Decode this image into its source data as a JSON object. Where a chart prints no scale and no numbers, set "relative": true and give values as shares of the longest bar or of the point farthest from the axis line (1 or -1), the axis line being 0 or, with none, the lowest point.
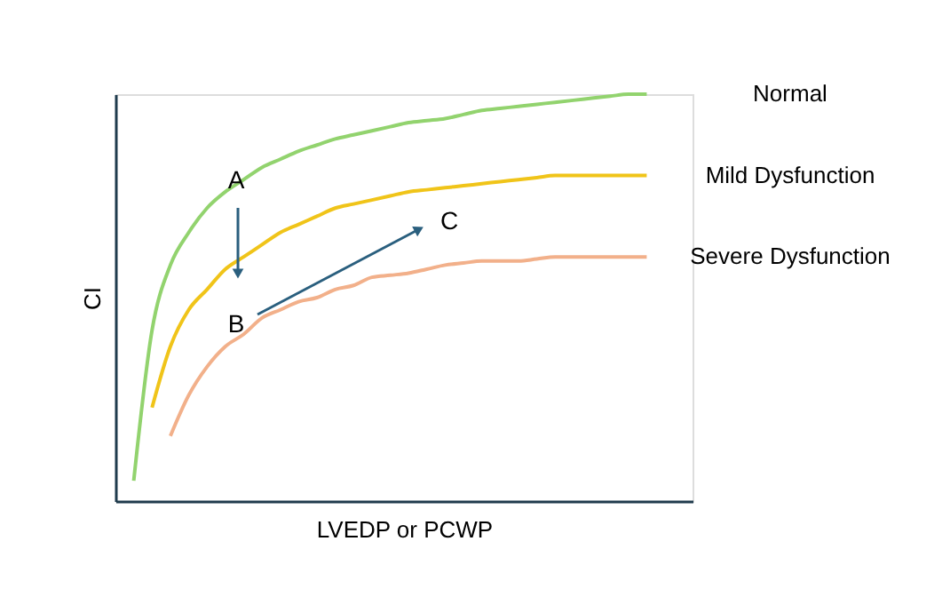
{
  "chart_data": {
    "type": "line",
    "relative": true,
    "xlabel": "LVEDP or PCWP",
    "ylabel": "CI",
    "tick_labels": false,
    "grid": false,
    "line_style": "solid",
    "categories": [
      null,
      null,
      null,
      null,
      null,
      null,
      null,
      null,
      null,
      null,
      null,
      null,
      null,
      null,
      null,
      null,
      null,
      null,
      null,
      null,
      null,
      null,
      null,
      null,
      null,
      null,
      null,
      null,
      null,
      null
    ],
    "series": [
      {
        "name": "Normal",
        "color": "#92d36e",
        "values": [
          null,
          0.05,
          0.42,
          0.58,
          0.66,
          0.72,
          0.76,
          0.79,
          0.82,
          0.84,
          0.86,
          0.875,
          0.89,
          0.9,
          0.91,
          0.92,
          0.93,
          0.935,
          0.94,
          0.95,
          0.96,
          0.965,
          0.97,
          0.975,
          0.98,
          0.985,
          0.99,
          0.995,
          1.0,
          1.0
        ]
      },
      {
        "name": "Mild Dysfunction",
        "color": "#f0c419",
        "values": [
          null,
          null,
          0.23,
          0.38,
          0.47,
          0.52,
          0.57,
          0.6,
          0.63,
          0.66,
          0.68,
          0.7,
          0.72,
          0.73,
          0.74,
          0.75,
          0.76,
          0.765,
          0.77,
          0.775,
          0.78,
          0.785,
          0.79,
          0.795,
          0.8,
          0.8,
          0.8,
          0.8,
          0.8,
          0.8
        ]
      },
      {
        "name": "Severe Dysfunction",
        "color": "#f2b08a",
        "values": [
          null,
          null,
          null,
          0.16,
          0.26,
          0.33,
          0.38,
          0.41,
          0.45,
          0.47,
          0.49,
          0.5,
          0.52,
          0.53,
          0.55,
          0.555,
          0.56,
          0.57,
          0.58,
          0.585,
          0.59,
          0.59,
          0.59,
          0.595,
          0.6,
          0.6,
          0.6,
          0.6,
          0.6,
          0.6
        ]
      }
    ],
    "annotations": [
      "A",
      "B",
      "C"
    ]
  }
}
